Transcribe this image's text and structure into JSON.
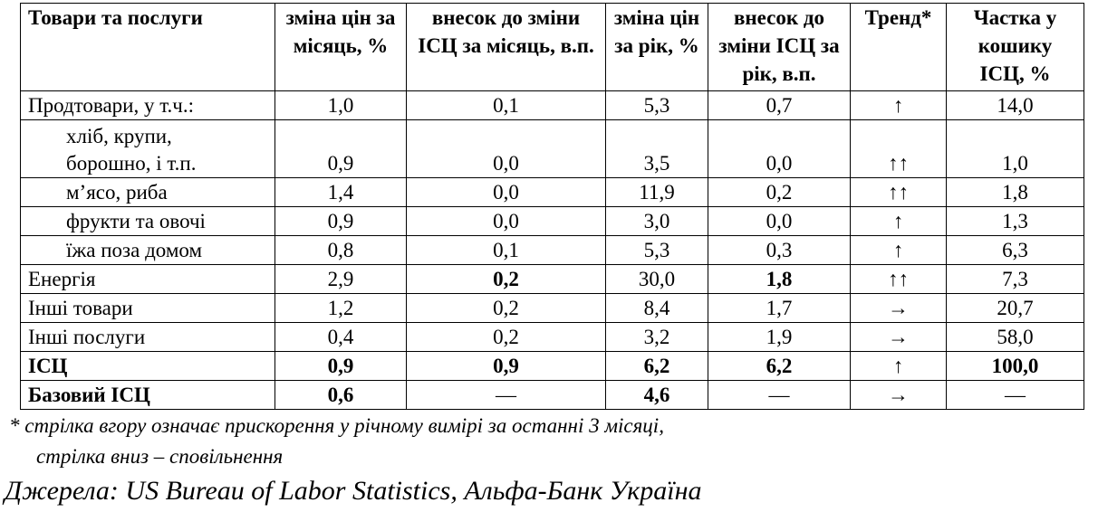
{
  "table": {
    "header": [
      "Товари та послуги",
      "зміна цін за місяць, %",
      "внесок до зміни ІСЦ за місяць, в.п.",
      "зміна цін за рік, %",
      "внесок до зміни ІСЦ за рік, в.п.",
      "Тренд*",
      "Частка у кошику ІСЦ, %"
    ],
    "rows": [
      [
        "Продтовари, у т.ч.:",
        "1,0",
        "0,1",
        "5,3",
        "0,7",
        "↑",
        "14,0"
      ],
      [
        "хліб, крупи,\nборошно, і т.п.",
        "0,9",
        "0,0",
        "3,5",
        "0,0",
        "↑↑",
        "1,0"
      ],
      [
        "м’ясо, риба",
        "1,4",
        "0,0",
        "11,9",
        "0,2",
        "↑↑",
        "1,8"
      ],
      [
        "фрукти та овочі",
        "0,9",
        "0,0",
        "3,0",
        "0,0",
        "↑",
        "1,3"
      ],
      [
        "їжа поза домом",
        "0,8",
        "0,1",
        "5,3",
        "0,3",
        "↑",
        "6,3"
      ],
      [
        "Енергія",
        "2,9",
        "0,2",
        "30,0",
        "1,8",
        "↑↑",
        "7,3"
      ],
      [
        "Інші товари",
        "1,2",
        "0,2",
        "8,4",
        "1,7",
        "→",
        "20,7"
      ],
      [
        "Інші послуги",
        "0,4",
        "0,2",
        "3,2",
        "1,9",
        "→",
        "58,0"
      ],
      [
        "ІСЦ",
        "0,9",
        "0,9",
        "6,2",
        "6,2",
        "↑",
        "100,0"
      ],
      [
        "Базовий ІСЦ",
        "0,6",
        "—",
        "4,6",
        "—",
        "→",
        "—"
      ]
    ]
  },
  "footnote": [
    "* стрілка вгору означає прискорення у річному вимірі за останні 3 місяці,",
    "стрілка вниз – сповільнення"
  ],
  "source": "Джерела: US Bureau of Labor Statistics, Альфа-Банк Україна"
}
